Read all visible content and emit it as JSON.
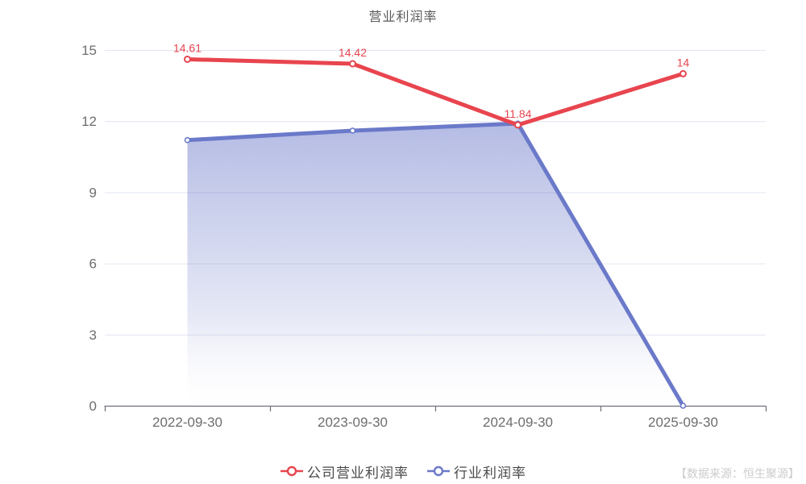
{
  "chart_data": {
    "type": "line",
    "title": "营业利润率",
    "categories": [
      "2022-09-30",
      "2023-09-30",
      "2024-09-30",
      "2025-09-30"
    ],
    "series": [
      {
        "name": "公司营业利润率",
        "color": "#e8454f",
        "values": [
          14.61,
          14.42,
          11.84,
          14
        ],
        "labels": [
          "14.61",
          "14.42",
          "11.84",
          "14"
        ],
        "area": false,
        "line_width": 5,
        "marker_radius": 3.5,
        "marker_stroke": 2
      },
      {
        "name": "行业利润率",
        "color": "#6b79c9",
        "values": [
          11.2,
          11.6,
          11.9,
          0
        ],
        "labels": [],
        "area": true,
        "line_width": 5,
        "marker_radius": 3,
        "marker_stroke": 1.6
      }
    ],
    "yticks": [
      0,
      3,
      6,
      9,
      12,
      15
    ],
    "ylim": [
      0,
      15
    ],
    "grid": true,
    "legend_position": "bottom",
    "source_note": "【数据来源：恒生聚源】",
    "colors": {
      "title": "#5a5a5a",
      "grid": "#e2e6f2",
      "axis": "#6e707a",
      "tick_label": "#6e6e6e",
      "legend_text": "#4a4a4a",
      "source": "#cccccc",
      "background": "#ffffff",
      "area_fade_to": "#ffffff"
    }
  }
}
